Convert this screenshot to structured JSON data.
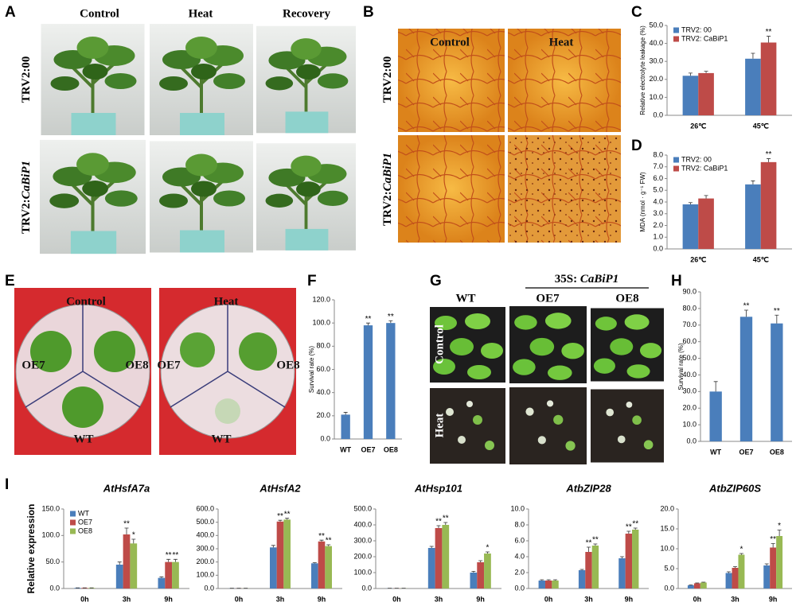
{
  "figure": {
    "A": {
      "letter": "A",
      "columns": [
        "Control",
        "Heat",
        "Recovery"
      ],
      "rows": [
        {
          "plain": "TRV2:00"
        },
        {
          "plain": "TRV2:",
          "italic": "CaBiP1"
        }
      ]
    },
    "B": {
      "letter": "B",
      "columns": [
        "Control",
        "Heat"
      ],
      "rows": [
        {
          "plain": "TRV2:00"
        },
        {
          "plain": "TRV2:",
          "italic": "CaBiP1"
        }
      ]
    },
    "E": {
      "letter": "E",
      "columns": [
        "Control",
        "Heat"
      ],
      "plate_labels": [
        [
          "OE7",
          "OE8",
          "WT"
        ],
        [
          "OE7",
          "OE8",
          "WT"
        ]
      ]
    },
    "G": {
      "letter": "G",
      "construct": {
        "plain": "35S: ",
        "italic": "CaBiP1"
      },
      "columns": [
        "WT",
        "OE7",
        "OE8"
      ],
      "rows": [
        "Control",
        "Heat"
      ]
    },
    "I": {
      "letter": "I"
    }
  },
  "chart_data": [
    {
      "type": "bar",
      "panel": "C",
      "ylabel": "Relative electrolyte leakage (%)",
      "categories": [
        "26℃",
        "45℃"
      ],
      "series": [
        {
          "name": "TRV2: 00",
          "color": "#4a7ebb",
          "values": [
            22,
            31.5
          ],
          "errors": [
            1.5,
            3
          ],
          "significance": [
            null,
            null
          ]
        },
        {
          "name": "TRV2: CaBiP1",
          "color": "#be4b48",
          "values": [
            23.5,
            40.5
          ],
          "errors": [
            1,
            3.5
          ],
          "significance": [
            null,
            "**"
          ]
        }
      ],
      "ylim": [
        0,
        50
      ],
      "yticks": [
        {
          "value": 0,
          "label": "0.0"
        },
        {
          "value": 10,
          "label": "10.0"
        },
        {
          "value": 20,
          "label": "20.0"
        },
        {
          "value": 30,
          "label": "30.0"
        },
        {
          "value": 40,
          "label": "40.0"
        },
        {
          "value": 50,
          "label": "50.0"
        }
      ],
      "legend": "upper left"
    },
    {
      "type": "bar",
      "panel": "D",
      "ylabel": "MDA (nmol · g⁻¹ FW)",
      "categories": [
        "26℃",
        "45℃"
      ],
      "series": [
        {
          "name": "TRV2: 00",
          "color": "#4a7ebb",
          "values": [
            3.8,
            5.5
          ],
          "errors": [
            0.15,
            0.3
          ],
          "significance": [
            null,
            null
          ]
        },
        {
          "name": "TRV2: CaBiP1",
          "color": "#be4b48",
          "values": [
            4.3,
            7.4
          ],
          "errors": [
            0.25,
            0.3
          ],
          "significance": [
            null,
            "**"
          ]
        }
      ],
      "ylim": [
        0,
        8
      ],
      "yticks": [
        {
          "value": 0,
          "label": "0.0"
        },
        {
          "value": 1,
          "label": "1.0"
        },
        {
          "value": 2,
          "label": "2.0"
        },
        {
          "value": 3,
          "label": "3.0"
        },
        {
          "value": 4,
          "label": "4.0"
        },
        {
          "value": 5,
          "label": "5.0"
        },
        {
          "value": 6,
          "label": "6.0"
        },
        {
          "value": 7,
          "label": "7.0"
        },
        {
          "value": 8,
          "label": "8.0"
        }
      ],
      "legend": "upper left"
    },
    {
      "type": "bar",
      "panel": "F",
      "ylabel": "Survival rate (%)",
      "categories": [
        "WT",
        "OE7",
        "OE8"
      ],
      "color": "#4a7ebb",
      "values": [
        21,
        98,
        100
      ],
      "errors": [
        2,
        2,
        2
      ],
      "significance": [
        null,
        "**",
        "**"
      ],
      "ylim": [
        0,
        120
      ],
      "yticks": [
        {
          "value": 0,
          "label": "0.0"
        },
        {
          "value": 20,
          "label": "20.0"
        },
        {
          "value": 40,
          "label": "40.0"
        },
        {
          "value": 60,
          "label": "60.0"
        },
        {
          "value": 80,
          "label": "80.0"
        },
        {
          "value": 100,
          "label": "100.0"
        },
        {
          "value": 120,
          "label": "120.0"
        }
      ]
    },
    {
      "type": "bar",
      "panel": "H",
      "ylabel": "Survival rate (%)",
      "categories": [
        "WT",
        "OE7",
        "OE8"
      ],
      "color": "#4a7ebb",
      "values": [
        30,
        75,
        71
      ],
      "errors": [
        6,
        4,
        5
      ],
      "significance": [
        null,
        "**",
        "**"
      ],
      "ylim": [
        0,
        90
      ],
      "yticks": [
        {
          "value": 0,
          "label": "0.0"
        },
        {
          "value": 10,
          "label": "10.0"
        },
        {
          "value": 20,
          "label": "20.0"
        },
        {
          "value": 30,
          "label": "30.0"
        },
        {
          "value": 40,
          "label": "40.0"
        },
        {
          "value": 50,
          "label": "50.0"
        },
        {
          "value": 60,
          "label": "60.0"
        },
        {
          "value": 70,
          "label": "70.0"
        },
        {
          "value": 80,
          "label": "80.0"
        },
        {
          "value": 90,
          "label": "90.0"
        }
      ]
    },
    {
      "type": "bar",
      "title": "AtHsfA7a",
      "ylabel": "Relative expression",
      "categories": [
        "0h",
        "3h",
        "9h"
      ],
      "series": [
        {
          "name": "WT",
          "color": "#4a7ebb",
          "values": [
            1,
            45,
            20
          ],
          "errors": [
            0.2,
            5,
            2
          ],
          "significance": [
            null,
            null,
            null
          ]
        },
        {
          "name": "OE7",
          "color": "#be4b48",
          "values": [
            1,
            102,
            50
          ],
          "errors": [
            0.2,
            12,
            5
          ],
          "significance": [
            null,
            "**",
            "**"
          ]
        },
        {
          "name": "OE8",
          "color": "#98b954",
          "values": [
            1,
            85,
            50
          ],
          "errors": [
            0.2,
            8,
            5
          ],
          "significance": [
            null,
            "*",
            "**"
          ]
        }
      ],
      "ylim": [
        0,
        150
      ],
      "yticks": [
        {
          "value": 0,
          "label": "0.0"
        },
        {
          "value": 50,
          "label": "50.0"
        },
        {
          "value": 100,
          "label": "100.0"
        },
        {
          "value": 150,
          "label": "150.0"
        }
      ],
      "legend": "upper left"
    },
    {
      "type": "bar",
      "title": "AtHsfA2",
      "categories": [
        "0h",
        "3h",
        "9h"
      ],
      "series": [
        {
          "color": "#4a7ebb",
          "values": [
            1,
            310,
            190
          ],
          "errors": [
            1,
            15,
            5
          ],
          "significance": [
            null,
            null,
            null
          ]
        },
        {
          "color": "#be4b48",
          "values": [
            1,
            505,
            355
          ],
          "errors": [
            1,
            10,
            10
          ],
          "significance": [
            null,
            "**",
            "**"
          ]
        },
        {
          "color": "#98b954",
          "values": [
            1,
            520,
            320
          ],
          "errors": [
            1,
            10,
            10
          ],
          "significance": [
            null,
            "**",
            "**"
          ]
        }
      ],
      "ylim": [
        0,
        600
      ],
      "yticks": [
        {
          "value": 0,
          "label": "0.0"
        },
        {
          "value": 100,
          "label": "100.0"
        },
        {
          "value": 200,
          "label": "200.0"
        },
        {
          "value": 300,
          "label": "300.0"
        },
        {
          "value": 400,
          "label": "400.0"
        },
        {
          "value": 500,
          "label": "500.0"
        },
        {
          "value": 600,
          "label": "600.0"
        }
      ]
    },
    {
      "type": "bar",
      "title": "AtHsp101",
      "categories": [
        "0h",
        "3h",
        "9h"
      ],
      "series": [
        {
          "color": "#4a7ebb",
          "values": [
            1,
            255,
            100
          ],
          "errors": [
            1,
            10,
            8
          ],
          "significance": [
            null,
            null,
            null
          ]
        },
        {
          "color": "#be4b48",
          "values": [
            1,
            380,
            165
          ],
          "errors": [
            1,
            15,
            10
          ],
          "significance": [
            null,
            "**",
            null
          ]
        },
        {
          "color": "#98b954",
          "values": [
            1,
            400,
            220
          ],
          "errors": [
            1,
            15,
            10
          ],
          "significance": [
            null,
            "**",
            "*"
          ]
        }
      ],
      "ylim": [
        0,
        500
      ],
      "yticks": [
        {
          "value": 0,
          "label": "0.0"
        },
        {
          "value": 100,
          "label": "100.0"
        },
        {
          "value": 200,
          "label": "200.0"
        },
        {
          "value": 300,
          "label": "300.0"
        },
        {
          "value": 400,
          "label": "400.0"
        },
        {
          "value": 500,
          "label": "500.0"
        }
      ]
    },
    {
      "type": "bar",
      "title": "AtbZIP28",
      "categories": [
        "0h",
        "3h",
        "9h"
      ],
      "series": [
        {
          "color": "#4a7ebb",
          "values": [
            1,
            2.3,
            3.8
          ],
          "errors": [
            0.1,
            0.1,
            0.2
          ],
          "significance": [
            null,
            null,
            null
          ]
        },
        {
          "color": "#be4b48",
          "values": [
            1,
            4.6,
            6.9
          ],
          "errors": [
            0.1,
            0.6,
            0.3
          ],
          "significance": [
            null,
            "**",
            "**"
          ]
        },
        {
          "color": "#98b954",
          "values": [
            1,
            5.4,
            7.4
          ],
          "errors": [
            0.1,
            0.2,
            0.2
          ],
          "significance": [
            null,
            "**",
            "**"
          ]
        }
      ],
      "ylim": [
        0,
        10
      ],
      "yticks": [
        {
          "value": 0,
          "label": "0.0"
        },
        {
          "value": 2,
          "label": "2.0"
        },
        {
          "value": 4,
          "label": "4.0"
        },
        {
          "value": 6,
          "label": "6.0"
        },
        {
          "value": 8,
          "label": "8.0"
        },
        {
          "value": 10,
          "label": "10.0"
        }
      ]
    },
    {
      "type": "bar",
      "title": "AtbZIP60S",
      "categories": [
        "0h",
        "3h",
        "9h"
      ],
      "series": [
        {
          "color": "#4a7ebb",
          "values": [
            0.8,
            3.9,
            5.8
          ],
          "errors": [
            0.1,
            0.3,
            0.4
          ],
          "significance": [
            null,
            null,
            null
          ]
        },
        {
          "color": "#be4b48",
          "values": [
            1.3,
            5.2,
            10.3
          ],
          "errors": [
            0.1,
            0.3,
            1
          ],
          "significance": [
            null,
            null,
            "**"
          ]
        },
        {
          "color": "#98b954",
          "values": [
            1.5,
            8.5,
            13.2
          ],
          "errors": [
            0.1,
            0.3,
            1.5
          ],
          "significance": [
            null,
            "*",
            "*"
          ]
        }
      ],
      "ylim": [
        0,
        20
      ],
      "yticks": [
        {
          "value": 0,
          "label": "0.0"
        },
        {
          "value": 5,
          "label": "5.0"
        },
        {
          "value": 10,
          "label": "10.0"
        },
        {
          "value": 15,
          "label": "15.0"
        },
        {
          "value": 20,
          "label": "20.0"
        }
      ]
    }
  ]
}
